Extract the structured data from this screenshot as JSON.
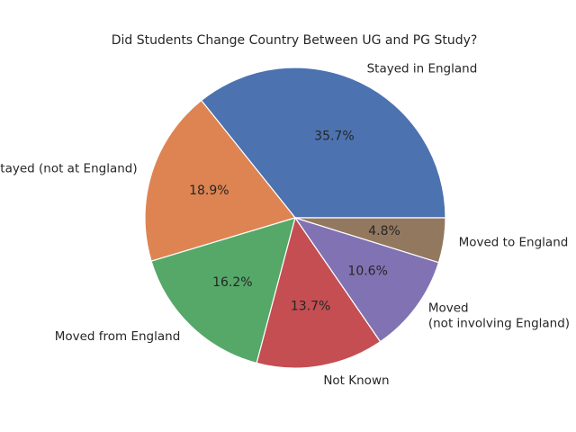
{
  "chart_data": {
    "type": "pie",
    "title": "Did Students Change Country Between UG and PG Study?",
    "slices": [
      {
        "label": "Stayed in England",
        "value": 35.7,
        "pct_label": "35.7%",
        "color": "#4c72b0"
      },
      {
        "label": "Stayed (not at England)",
        "value": 18.9,
        "pct_label": "18.9%",
        "color": "#dd8452"
      },
      {
        "label": "Moved from England",
        "value": 16.2,
        "pct_label": "16.2%",
        "color": "#55a868"
      },
      {
        "label": "Not Known",
        "value": 13.7,
        "pct_label": "13.7%",
        "color": "#c44e52"
      },
      {
        "label": "Moved\n(not involving England)",
        "value": 10.6,
        "pct_label": "10.6%",
        "color": "#8172b3"
      },
      {
        "label": "Moved to England",
        "value": 4.8,
        "pct_label": "4.8%",
        "color": "#937860"
      }
    ],
    "start_angle": 0,
    "direction": "counterclockwise",
    "legend": "none"
  }
}
